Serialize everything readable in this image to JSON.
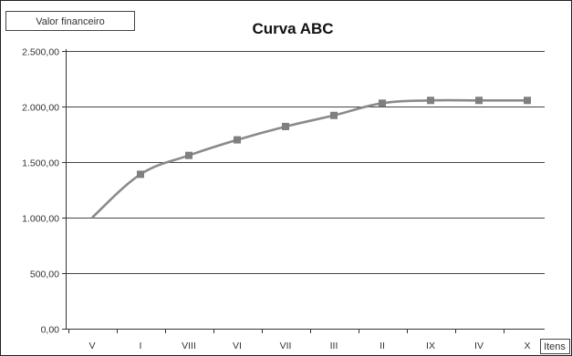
{
  "chart_data": {
    "type": "line",
    "title": "Curva ABC",
    "ylabel": "Valor financeiro",
    "xlabel": "Itens",
    "categories": [
      "V",
      "I",
      "VIII",
      "VI",
      "VII",
      "III",
      "II",
      "IX",
      "IV",
      "X"
    ],
    "series": [
      {
        "values": [
          1000,
          1390,
          1560,
          1700,
          1820,
          1920,
          2030,
          2055,
          2055,
          2055
        ]
      }
    ],
    "ylim": [
      0,
      2500
    ],
    "yticks": [
      "0,00",
      "500,00",
      "1.000,00",
      "1.500,00",
      "2.000,00",
      "2.500,00"
    ],
    "grid": true,
    "colors": {
      "line": "#8a8a8a",
      "marker": "#7f7f7f",
      "grid": "#444444",
      "axis": "#333333"
    }
  }
}
